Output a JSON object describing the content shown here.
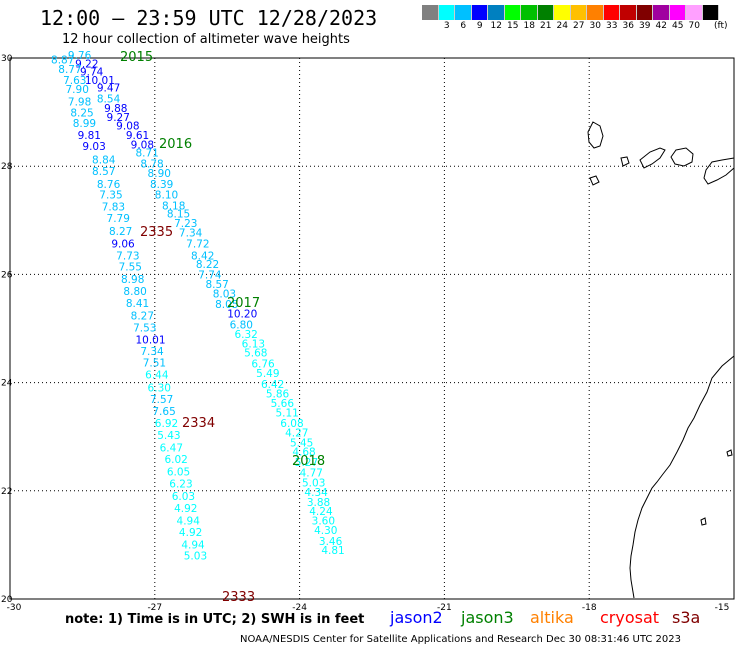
{
  "header": {
    "title": "12:00 — 23:59 UTC 12/28/2023",
    "subtitle": "12 hour collection of altimeter wave heights"
  },
  "legend": {
    "colors": [
      "#808080",
      "#00ffff",
      "#00c0ff",
      "#0000ff",
      "#0080c0",
      "#00ff00",
      "#00c000",
      "#008000",
      "#ffff00",
      "#ffc000",
      "#ff8000",
      "#ff0000",
      "#c00000",
      "#800000",
      "#a000a0",
      "#ff00ff",
      "#ffa0ff",
      "#000000"
    ],
    "labels": [
      "",
      "3",
      "6",
      "9",
      "12",
      "15",
      "18",
      "21",
      "24",
      "27",
      "30",
      "33",
      "36",
      "39",
      "42",
      "45",
      "70"
    ],
    "unit": "(ft)"
  },
  "axes": {
    "x_ticks": [
      "-30",
      "-27",
      "-24",
      "-21",
      "-18",
      "-15"
    ],
    "y_ticks": [
      "30",
      "28",
      "26",
      "24",
      "22",
      "20"
    ]
  },
  "pass_labels": [
    {
      "text": "2015",
      "color": "#008000"
    },
    {
      "text": "2016",
      "color": "#008000"
    },
    {
      "text": "2017",
      "color": "#008000"
    },
    {
      "text": "2018",
      "color": "#008000"
    },
    {
      "text": "2335",
      "color": "#800000"
    },
    {
      "text": "2334",
      "color": "#800000"
    },
    {
      "text": "2333",
      "color": "#800000"
    }
  ],
  "track_a": [
    {
      "v": "9.76",
      "c": "#00c0ff",
      "lat": 29.98,
      "lon": -28.8
    },
    {
      "v": "8.87",
      "c": "#00c0ff",
      "lat": 29.9,
      "lon": -29.15
    },
    {
      "v": "9.22",
      "c": "#0000ff",
      "lat": 29.82,
      "lon": -28.65
    },
    {
      "v": "8.77",
      "c": "#00c0ff",
      "lat": 29.72,
      "lon": -29.0
    },
    {
      "v": "9.74",
      "c": "#0000ff",
      "lat": 29.68,
      "lon": -28.55
    },
    {
      "v": "7.63",
      "c": "#00c0ff",
      "lat": 29.52,
      "lon": -28.9
    },
    {
      "v": "10.01",
      "c": "#0000ff",
      "lat": 29.52,
      "lon": -28.45
    },
    {
      "v": "7.90",
      "c": "#00c0ff",
      "lat": 29.35,
      "lon": -28.85
    },
    {
      "v": "9.47",
      "c": "#0000ff",
      "lat": 29.38,
      "lon": -28.2
    },
    {
      "v": "7.98",
      "c": "#00c0ff",
      "lat": 29.12,
      "lon": -28.8
    },
    {
      "v": "8.54",
      "c": "#00c0ff",
      "lat": 29.18,
      "lon": -28.2
    },
    {
      "v": "9.88",
      "c": "#0000ff",
      "lat": 29.0,
      "lon": -28.05
    },
    {
      "v": "8.25",
      "c": "#00c0ff",
      "lat": 28.92,
      "lon": -28.75
    },
    {
      "v": "9.27",
      "c": "#0000ff",
      "lat": 28.84,
      "lon": -28.0
    },
    {
      "v": "8.99",
      "c": "#00c0ff",
      "lat": 28.72,
      "lon": -28.7
    },
    {
      "v": "9.08",
      "c": "#0000ff",
      "lat": 28.68,
      "lon": -27.8
    },
    {
      "v": "9.81",
      "c": "#0000ff",
      "lat": 28.5,
      "lon": -28.6
    },
    {
      "v": "9.61",
      "c": "#0000ff",
      "lat": 28.5,
      "lon": -27.6
    },
    {
      "v": "9.03",
      "c": "#0000ff",
      "lat": 28.3,
      "lon": -28.5
    },
    {
      "v": "9.08",
      "c": "#0000ff",
      "lat": 28.33,
      "lon": -27.5
    },
    {
      "v": "8.71",
      "c": "#00c0ff",
      "lat": 28.18,
      "lon": -27.4
    },
    {
      "v": "8.84",
      "c": "#00c0ff",
      "lat": 28.05,
      "lon": -28.3
    },
    {
      "v": "8.78",
      "c": "#00c0ff",
      "lat": 27.98,
      "lon": -27.3
    },
    {
      "v": "8.57",
      "c": "#00c0ff",
      "lat": 27.84,
      "lon": -28.3
    },
    {
      "v": "8.90",
      "c": "#00c0ff",
      "lat": 27.8,
      "lon": -27.15
    },
    {
      "v": "8.76",
      "c": "#00c0ff",
      "lat": 27.6,
      "lon": -28.2
    },
    {
      "v": "8.39",
      "c": "#00c0ff",
      "lat": 27.6,
      "lon": -27.1
    },
    {
      "v": "7.35",
      "c": "#00c0ff",
      "lat": 27.4,
      "lon": -28.15
    },
    {
      "v": "8.10",
      "c": "#00c0ff",
      "lat": 27.4,
      "lon": -27.0
    },
    {
      "v": "7.83",
      "c": "#00c0ff",
      "lat": 27.18,
      "lon": -28.1
    },
    {
      "v": "8.18",
      "c": "#00c0ff",
      "lat": 27.2,
      "lon": -26.85
    },
    {
      "v": "8.15",
      "c": "#00c0ff",
      "lat": 27.05,
      "lon": -26.75
    },
    {
      "v": "7.79",
      "c": "#00c0ff",
      "lat": 26.97,
      "lon": -28.0
    },
    {
      "v": "7.23",
      "c": "#00c0ff",
      "lat": 26.88,
      "lon": -26.6
    },
    {
      "v": "8.27",
      "c": "#00c0ff",
      "lat": 26.73,
      "lon": -27.95
    },
    {
      "v": "7.34",
      "c": "#00c0ff",
      "lat": 26.7,
      "lon": -26.5
    },
    {
      "v": "9.06",
      "c": "#0000ff",
      "lat": 26.5,
      "lon": -27.9
    },
    {
      "v": "7.72",
      "c": "#00c0ff",
      "lat": 26.5,
      "lon": -26.35
    },
    {
      "v": "7.73",
      "c": "#00c0ff",
      "lat": 26.28,
      "lon": -27.8
    },
    {
      "v": "8.42",
      "c": "#00c0ff",
      "lat": 26.28,
      "lon": -26.25
    },
    {
      "v": "7.55",
      "c": "#00c0ff",
      "lat": 26.07,
      "lon": -27.75
    },
    {
      "v": "8.22",
      "c": "#00c0ff",
      "lat": 26.12,
      "lon": -26.15
    },
    {
      "v": "7.74",
      "c": "#00c0ff",
      "lat": 25.92,
      "lon": -26.1
    },
    {
      "v": "8.98",
      "c": "#00c0ff",
      "lat": 25.84,
      "lon": -27.7
    },
    {
      "v": "8.57",
      "c": "#00c0ff",
      "lat": 25.75,
      "lon": -25.95
    },
    {
      "v": "8.80",
      "c": "#00c0ff",
      "lat": 25.62,
      "lon": -27.65
    },
    {
      "v": "8.03",
      "c": "#00c0ff",
      "lat": 25.57,
      "lon": -25.8
    },
    {
      "v": "8.41",
      "c": "#00c0ff",
      "lat": 25.4,
      "lon": -27.6
    },
    {
      "v": "8.05",
      "c": "#00c0ff",
      "lat": 25.38,
      "lon": -25.75
    },
    {
      "v": "8.27",
      "c": "#00c0ff",
      "lat": 25.17,
      "lon": -27.5
    },
    {
      "v": "10.20",
      "c": "#0000ff",
      "lat": 25.2,
      "lon": -25.5
    },
    {
      "v": "6.80",
      "c": "#00c0ff",
      "lat": 25.0,
      "lon": -25.45
    },
    {
      "v": "7.53",
      "c": "#00c0ff",
      "lat": 24.94,
      "lon": -27.45
    },
    {
      "v": "6.32",
      "c": "#00ffff",
      "lat": 24.82,
      "lon": -25.35
    },
    {
      "v": "10.01",
      "c": "#0000ff",
      "lat": 24.72,
      "lon": -27.4
    },
    {
      "v": "6.13",
      "c": "#00ffff",
      "lat": 24.65,
      "lon": -25.2
    },
    {
      "v": "7.34",
      "c": "#00c0ff",
      "lat": 24.51,
      "lon": -27.3
    },
    {
      "v": "5.68",
      "c": "#00ffff",
      "lat": 24.48,
      "lon": -25.15
    },
    {
      "v": "7.51",
      "c": "#00c0ff",
      "lat": 24.3,
      "lon": -27.25
    },
    {
      "v": "6.76",
      "c": "#00ffff",
      "lat": 24.28,
      "lon": -25.0
    },
    {
      "v": "6.44",
      "c": "#00ffff",
      "lat": 24.08,
      "lon": -27.2
    },
    {
      "v": "5.49",
      "c": "#00ffff",
      "lat": 24.1,
      "lon": -24.9
    },
    {
      "v": "6.42",
      "c": "#00ffff",
      "lat": 23.9,
      "lon": -24.8
    },
    {
      "v": "6.30",
      "c": "#00ffff",
      "lat": 23.84,
      "lon": -27.15
    },
    {
      "v": "5.86",
      "c": "#00ffff",
      "lat": 23.72,
      "lon": -24.7
    },
    {
      "v": "7.57",
      "c": "#00c0ff",
      "lat": 23.62,
      "lon": -27.1
    },
    {
      "v": "5.66",
      "c": "#00ffff",
      "lat": 23.55,
      "lon": -24.6
    },
    {
      "v": "7.65",
      "c": "#00c0ff",
      "lat": 23.4,
      "lon": -27.05
    },
    {
      "v": "5.11",
      "c": "#00ffff",
      "lat": 23.37,
      "lon": -24.5
    },
    {
      "v": "6.92",
      "c": "#00ffff",
      "lat": 23.18,
      "lon": -27.0
    },
    {
      "v": "6.08",
      "c": "#00ffff",
      "lat": 23.18,
      "lon": -24.4
    },
    {
      "v": "4.27",
      "c": "#00ffff",
      "lat": 23.0,
      "lon": -24.3
    },
    {
      "v": "5.43",
      "c": "#00ffff",
      "lat": 22.96,
      "lon": -26.95
    },
    {
      "v": "5.45",
      "c": "#00ffff",
      "lat": 22.82,
      "lon": -24.2
    },
    {
      "v": "6.47",
      "c": "#00ffff",
      "lat": 22.73,
      "lon": -26.9
    },
    {
      "v": "4.68",
      "c": "#00ffff",
      "lat": 22.65,
      "lon": -24.15
    },
    {
      "v": "6.02",
      "c": "#00ffff",
      "lat": 22.51,
      "lon": -26.8
    },
    {
      "v": "5.27",
      "c": "#00ffff",
      "lat": 22.46,
      "lon": -24.1
    },
    {
      "v": "4.77",
      "c": "#00ffff",
      "lat": 22.26,
      "lon": -24.0
    },
    {
      "v": "6.05",
      "c": "#00ffff",
      "lat": 22.28,
      "lon": -26.75
    },
    {
      "v": "5.03",
      "c": "#00ffff",
      "lat": 22.08,
      "lon": -23.95
    },
    {
      "v": "6.23",
      "c": "#00ffff",
      "lat": 22.06,
      "lon": -26.7
    },
    {
      "v": "4.34",
      "c": "#00ffff",
      "lat": 21.9,
      "lon": -23.9
    },
    {
      "v": "6.03",
      "c": "#00ffff",
      "lat": 21.83,
      "lon": -26.65
    },
    {
      "v": "3.88",
      "c": "#00ffff",
      "lat": 21.72,
      "lon": -23.85
    },
    {
      "v": "4.92",
      "c": "#00ffff",
      "lat": 21.61,
      "lon": -26.6
    },
    {
      "v": "4.24",
      "c": "#00ffff",
      "lat": 21.55,
      "lon": -23.8
    },
    {
      "v": "3.60",
      "c": "#00ffff",
      "lat": 21.38,
      "lon": -23.75
    },
    {
      "v": "4.94",
      "c": "#00ffff",
      "lat": 21.38,
      "lon": -26.55
    },
    {
      "v": "4.30",
      "c": "#00ffff",
      "lat": 21.2,
      "lon": -23.7
    },
    {
      "v": "4.92",
      "c": "#00ffff",
      "lat": 21.16,
      "lon": -26.5
    },
    {
      "v": "3.46",
      "c": "#00ffff",
      "lat": 21.0,
      "lon": -23.6
    },
    {
      "v": "4.94",
      "c": "#00ffff",
      "lat": 20.93,
      "lon": -26.45
    },
    {
      "v": "4.81",
      "c": "#00ffff",
      "lat": 20.83,
      "lon": -23.55
    },
    {
      "v": "5.03",
      "c": "#00ffff",
      "lat": 20.73,
      "lon": -26.4
    }
  ],
  "missions": [
    {
      "name": "jason2",
      "color": "#0000ff"
    },
    {
      "name": "jason3",
      "color": "#008000"
    },
    {
      "name": "altika",
      "color": "#ff8000"
    },
    {
      "name": "cryosat",
      "color": "#ff0000"
    },
    {
      "name": "s3a",
      "color": "#800000"
    }
  ],
  "note": "note: 1) Time is in UTC; 2) SWH is in feet",
  "credit": "NOAA/NESDIS Center for Satellite Applications and Research    Dec 30 08:31:46 UTC 2023"
}
